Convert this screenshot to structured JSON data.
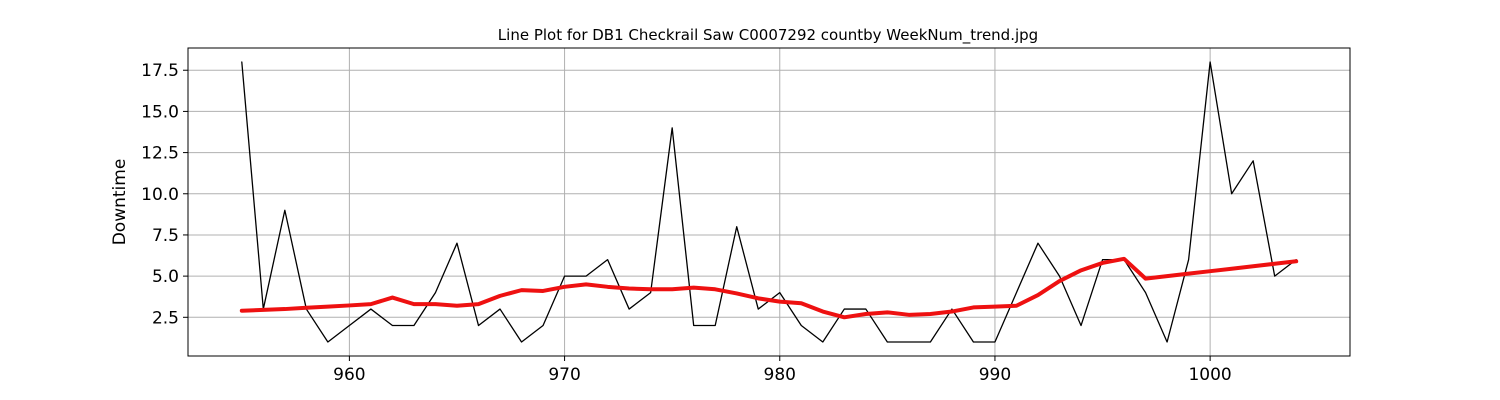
{
  "chart_data": {
    "type": "line",
    "title": "Line Plot for DB1 Checkrail Saw C0007292 countby WeekNum_trend.jpg",
    "xlabel": "",
    "ylabel": "Downtime",
    "xlim": [
      952.5,
      1006.5
    ],
    "ylim": [
      0.15,
      18.85
    ],
    "xticks": [
      960,
      970,
      980,
      990,
      1000
    ],
    "yticks": [
      2.5,
      5.0,
      7.5,
      10.0,
      12.5,
      15.0,
      17.5
    ],
    "ytick_labels": [
      "2.5",
      "5.0",
      "7.5",
      "10.0",
      "12.5",
      "15.0",
      "17.5"
    ],
    "grid": true,
    "x": [
      955,
      956,
      957,
      958,
      959,
      960,
      961,
      962,
      963,
      964,
      965,
      966,
      967,
      968,
      969,
      970,
      971,
      972,
      973,
      974,
      975,
      976,
      977,
      978,
      979,
      980,
      981,
      982,
      983,
      984,
      985,
      986,
      987,
      988,
      989,
      990,
      991,
      992,
      993,
      994,
      995,
      996,
      997,
      998,
      999,
      1000,
      1001,
      1002,
      1003,
      1004
    ],
    "series": [
      {
        "color": "#000000",
        "line_width": 1.3,
        "values": [
          18,
          3,
          9,
          3,
          1,
          2,
          3,
          2,
          2,
          4,
          7,
          2,
          3,
          1,
          2,
          5,
          5,
          6,
          3,
          4,
          14,
          2,
          2,
          8,
          3,
          4,
          2,
          1,
          3,
          3,
          1,
          1,
          1,
          3,
          1,
          1,
          4,
          7,
          5,
          2,
          6,
          6,
          4,
          1,
          6,
          18,
          10,
          12,
          5,
          6
        ]
      },
      {
        "color": "#ee1111",
        "line_width": 4,
        "values": [
          2.9,
          2.95,
          3.0,
          3.08,
          3.15,
          3.22,
          3.3,
          3.7,
          3.3,
          3.3,
          3.2,
          3.3,
          3.8,
          4.15,
          4.1,
          4.35,
          4.5,
          4.35,
          4.25,
          4.2,
          4.2,
          4.3,
          4.2,
          3.95,
          3.65,
          3.45,
          3.35,
          2.85,
          2.5,
          2.7,
          2.8,
          2.65,
          2.7,
          2.85,
          3.1,
          3.15,
          3.2,
          3.85,
          4.7,
          5.35,
          5.8,
          6.05,
          4.85,
          5.0,
          5.15,
          5.3,
          5.45,
          5.6,
          5.75,
          5.9
        ]
      }
    ]
  }
}
